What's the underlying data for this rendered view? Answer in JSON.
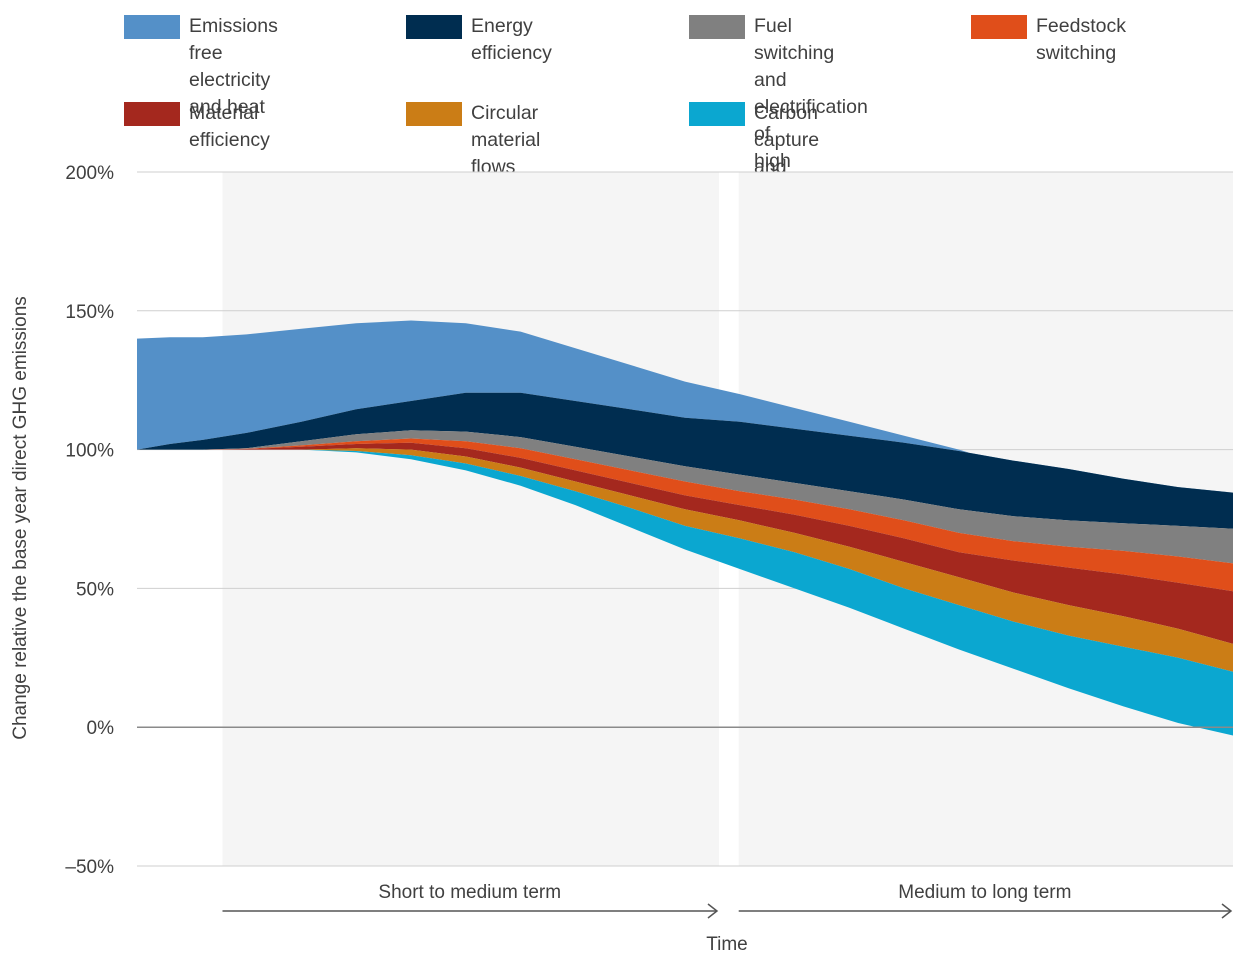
{
  "legend": [
    {
      "key": "ef_elec",
      "label": "Emissions free electricity\nand heat",
      "color": "#5490C8"
    },
    {
      "key": "energy_eff",
      "label": "Energy efficiency",
      "color": "#002D50"
    },
    {
      "key": "fuel_switch",
      "label": "Fuel switching and\nelectrification of\nhigh temperature",
      "color": "#808080"
    },
    {
      "key": "feedstock",
      "label": "Feedstock switching",
      "color": "#E04E1A"
    },
    {
      "key": "material_eff",
      "label": "Material efficiency",
      "color": "#A4281E"
    },
    {
      "key": "circular",
      "label": "Circular material flows\nand waste reduction",
      "color": "#CB7D16"
    },
    {
      "key": "ccs",
      "label": "Carbon capture and\nuse (CCU) and storage (CCS)",
      "color": "#0BA7D0"
    }
  ],
  "chart_data": {
    "type": "area",
    "ylabel": "Change relative the base year direct GHG emissions",
    "xlabel": "Time",
    "ylim": [
      -50,
      200
    ],
    "yticks": [
      "200%",
      "150%",
      "100%",
      "50%",
      "0%",
      "–50%"
    ],
    "ytick_values": [
      200,
      150,
      100,
      50,
      0,
      -50
    ],
    "periods": [
      {
        "label": "Short to medium term",
        "x_start": 0.078,
        "x_end": 0.531
      },
      {
        "label": "Medium to long term",
        "x_start": 0.549,
        "x_end": 1.0
      }
    ],
    "x": [
      0,
      0.03,
      0.06,
      0.1,
      0.15,
      0.2,
      0.25,
      0.3,
      0.35,
      0.4,
      0.45,
      0.5,
      0.55,
      0.6,
      0.65,
      0.7,
      0.75,
      0.8,
      0.85,
      0.9,
      0.95,
      1.0
    ],
    "boundaries": {
      "ef_elec_top": [
        140,
        140.5,
        140.5,
        141.5,
        143.5,
        145.5,
        146.5,
        145.5,
        142.5,
        136.5,
        130.5,
        124.5,
        120,
        115,
        110,
        105,
        100,
        94,
        91,
        88,
        86,
        84.5
      ],
      "energy_eff_top": [
        100,
        102,
        103.5,
        106,
        110,
        114.5,
        117.5,
        120.5,
        120.5,
        117.5,
        114.5,
        111.5,
        110,
        107.5,
        105,
        102.5,
        99.5,
        96,
        93,
        89.5,
        86.5,
        84.5
      ],
      "fuel_switch_top": [
        100,
        100,
        100,
        100.5,
        103,
        105.5,
        107,
        106.5,
        104.5,
        101,
        97.5,
        94,
        91,
        88,
        85,
        82,
        78.5,
        76,
        74.5,
        73.5,
        72.5,
        71.5
      ],
      "feedstock_top": [
        100,
        100,
        100,
        100.3,
        101.5,
        103,
        104,
        103,
        100.5,
        96.5,
        92.5,
        88.5,
        85,
        82,
        78.5,
        74.5,
        70,
        67,
        65,
        63.5,
        61.5,
        59
      ],
      "material_eff_top": [
        100,
        100,
        100,
        100.2,
        101,
        102,
        102.5,
        100.5,
        97,
        92.5,
        88,
        83.5,
        80,
        76.5,
        72.5,
        68,
        63,
        60,
        57.5,
        55,
        52,
        49
      ],
      "circular_top": [
        100,
        100,
        100,
        100,
        100,
        100.5,
        100,
        97.5,
        93.5,
        88.5,
        83.5,
        78.5,
        74.5,
        70,
        65,
        59.5,
        54,
        48.5,
        44,
        40,
        35.5,
        30
      ],
      "ccs_top": [
        100,
        100,
        100,
        100,
        100,
        99.5,
        98,
        95,
        90.5,
        85,
        79,
        72.5,
        68,
        63,
        57,
        50,
        44,
        38,
        33,
        29,
        25,
        20
      ],
      "ccs_bottom": [
        100,
        100,
        100,
        100,
        100,
        99,
        96.5,
        92.5,
        87,
        80,
        72,
        64,
        57,
        50,
        43,
        35.5,
        28,
        21,
        14,
        7.5,
        1.5,
        -3
      ]
    }
  }
}
